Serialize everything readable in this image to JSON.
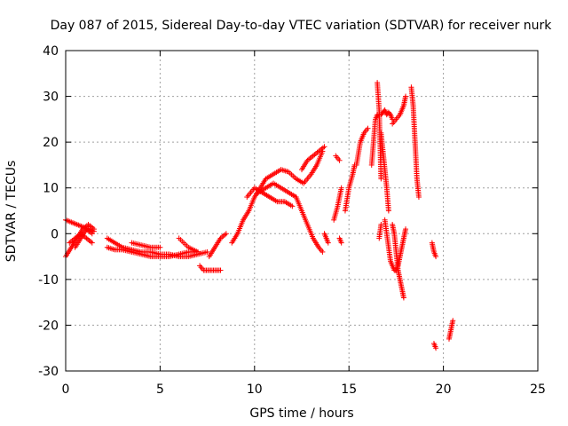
{
  "chart_data": {
    "type": "scatter",
    "title": "Day 087 of 2015, Sidereal Day-to-day VTEC variation (SDTVAR) for receiver nurk",
    "xlabel": "GPS time / hours",
    "ylabel": "SDTVAR / TECUs",
    "xlim": [
      0,
      25
    ],
    "ylim": [
      -30,
      40
    ],
    "xticks": [
      0,
      5,
      10,
      15,
      20,
      25
    ],
    "yticks": [
      -30,
      -20,
      -10,
      0,
      10,
      20,
      30,
      40
    ],
    "grid": true,
    "marker": "+",
    "color": "#ff0000",
    "segments": [
      {
        "x": [
          0.0,
          0.3,
          0.6,
          0.9,
          1.2,
          1.5
        ],
        "y": [
          3,
          2.5,
          2,
          1.5,
          1,
          0.5
        ]
      },
      {
        "x": [
          0.0,
          0.3,
          0.6,
          0.9,
          1.2,
          1.5
        ],
        "y": [
          -5,
          -3,
          -1,
          1,
          2,
          1
        ]
      },
      {
        "x": [
          0.2,
          0.5,
          0.8,
          1.1,
          1.4
        ],
        "y": [
          -2,
          -1,
          0,
          -1,
          -2
        ]
      },
      {
        "x": [
          0.5,
          0.8,
          1.1,
          1.4
        ],
        "y": [
          -3,
          -1,
          1,
          0
        ]
      },
      {
        "x": [
          2.2,
          2.6,
          3.0,
          3.5,
          4.0,
          4.5,
          5.0,
          5.5,
          6.0,
          6.5,
          7.0,
          7.5
        ],
        "y": [
          -1,
          -2,
          -3,
          -3.5,
          -4,
          -4,
          -4.5,
          -4.5,
          -5,
          -5,
          -4.5,
          -4
        ]
      },
      {
        "x": [
          2.2,
          2.6,
          3.0,
          3.5,
          4.0,
          4.5,
          5.0,
          5.5,
          6.0,
          6.5,
          7.0
        ],
        "y": [
          -3,
          -3.5,
          -3.5,
          -4,
          -4.5,
          -5,
          -5,
          -5,
          -4.5,
          -4,
          -4
        ]
      },
      {
        "x": [
          3.5,
          4.0,
          4.5,
          5.0
        ],
        "y": [
          -2,
          -2.5,
          -3,
          -3
        ]
      },
      {
        "x": [
          6.0,
          6.5,
          7.0
        ],
        "y": [
          -1,
          -3,
          -4
        ]
      },
      {
        "x": [
          7.1,
          7.3,
          7.6,
          7.9,
          8.2
        ],
        "y": [
          -7,
          -8,
          -8,
          -8,
          -8
        ]
      },
      {
        "x": [
          7.6,
          7.9,
          8.2,
          8.5
        ],
        "y": [
          -5,
          -3,
          -1,
          0
        ]
      },
      {
        "x": [
          8.8,
          9.1,
          9.4,
          9.7,
          10.0,
          10.3,
          10.6,
          11.0,
          11.4,
          11.8,
          12.2,
          12.6,
          13.0,
          13.3,
          13.6
        ],
        "y": [
          -2,
          0,
          3,
          5,
          8,
          10,
          12,
          13,
          14,
          13.5,
          12,
          11,
          13,
          15,
          18
        ]
      },
      {
        "x": [
          9.6,
          10.0,
          10.4,
          10.8,
          11.2,
          11.6,
          12.0
        ],
        "y": [
          8,
          10,
          9,
          8,
          7,
          7,
          6
        ]
      },
      {
        "x": [
          10.2,
          10.6,
          11.0,
          11.4,
          11.8,
          12.2
        ],
        "y": [
          9,
          10,
          11,
          10,
          9,
          8
        ]
      },
      {
        "x": [
          12.2,
          12.5,
          12.8,
          13.1,
          13.4,
          13.6
        ],
        "y": [
          8,
          5,
          2,
          -1,
          -3,
          -4
        ]
      },
      {
        "x": [
          12.5,
          12.8,
          13.1,
          13.4,
          13.7
        ],
        "y": [
          14,
          16,
          17,
          18,
          19
        ]
      },
      {
        "x": [
          13.7,
          13.8,
          13.9
        ],
        "y": [
          0,
          -1,
          -2
        ]
      },
      {
        "x": [
          14.2,
          14.4,
          14.6
        ],
        "y": [
          3,
          6,
          10
        ]
      },
      {
        "x": [
          14.3,
          14.5
        ],
        "y": [
          17,
          16
        ]
      },
      {
        "x": [
          14.5,
          14.6
        ],
        "y": [
          -1,
          -2
        ]
      },
      {
        "x": [
          14.8,
          15.0,
          15.2,
          15.3
        ],
        "y": [
          5,
          10,
          13,
          15
        ]
      },
      {
        "x": [
          15.4,
          15.6,
          15.8,
          16.0
        ],
        "y": [
          15,
          20,
          22,
          23
        ]
      },
      {
        "x": [
          16.2,
          16.4,
          16.5
        ],
        "y": [
          15,
          25,
          26
        ]
      },
      {
        "x": [
          16.5,
          16.6,
          16.7
        ],
        "y": [
          33,
          27,
          12
        ]
      },
      {
        "x": [
          16.7,
          16.8,
          16.9,
          17.0,
          17.1,
          17.2,
          17.3
        ],
        "y": [
          26,
          26.5,
          27,
          26,
          26.5,
          26,
          25
        ]
      },
      {
        "x": [
          16.7,
          16.8,
          16.9,
          17.0,
          17.1
        ],
        "y": [
          22,
          18,
          14,
          10,
          5
        ]
      },
      {
        "x": [
          16.6,
          16.7
        ],
        "y": [
          -1,
          2
        ]
      },
      {
        "x": [
          16.9,
          17.0,
          17.1,
          17.2,
          17.3,
          17.4,
          17.5,
          17.6,
          17.7,
          17.8,
          17.9,
          18.0
        ],
        "y": [
          3,
          0,
          -3,
          -6,
          -7,
          -8,
          -8,
          -7,
          -5,
          -3,
          -1,
          1
        ]
      },
      {
        "x": [
          17.3,
          17.4,
          17.5,
          17.6,
          17.7,
          17.8,
          17.9
        ],
        "y": [
          2,
          0,
          -4,
          -8,
          -10,
          -12,
          -14
        ]
      },
      {
        "x": [
          17.3,
          17.5,
          17.7,
          17.9,
          18.0
        ],
        "y": [
          24,
          25,
          26,
          28,
          30
        ]
      },
      {
        "x": [
          18.3,
          18.4,
          18.5,
          18.6,
          18.7
        ],
        "y": [
          32,
          28,
          20,
          12,
          8
        ]
      },
      {
        "x": [
          19.4,
          19.5,
          19.6
        ],
        "y": [
          -2,
          -4,
          -5
        ]
      },
      {
        "x": [
          19.5,
          19.6
        ],
        "y": [
          -24,
          -25
        ]
      },
      {
        "x": [
          20.3,
          20.4,
          20.5
        ],
        "y": [
          -23,
          -21,
          -19
        ]
      }
    ]
  }
}
